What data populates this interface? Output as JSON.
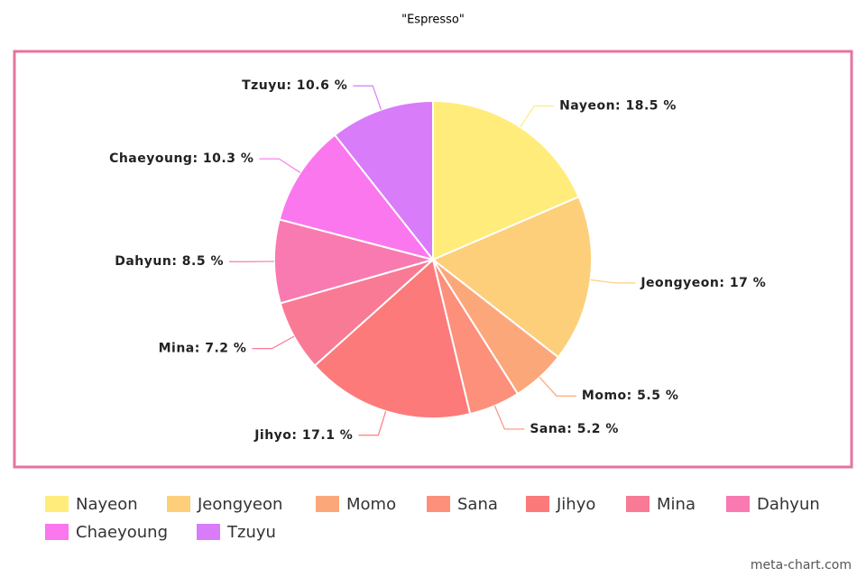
{
  "chart_data": {
    "type": "pie",
    "title": "\"Espresso\"",
    "categories": [
      "Nayeon",
      "Jeongyeon",
      "Momo",
      "Sana",
      "Jihyo",
      "Mina",
      "Dahyun",
      "Chaeyoung",
      "Tzuyu"
    ],
    "values": [
      18.5,
      17,
      5.5,
      5.2,
      17.1,
      7.2,
      8.5,
      10.3,
      10.6
    ],
    "value_labels": [
      "Nayeon: 18.5 %",
      "Jeongyeon: 17 %",
      "Momo: 5.5 %",
      "Sana: 5.2 %",
      "Jihyo: 17.1 %",
      "Mina: 7.2 %",
      "Dahyun: 8.5 %",
      "Chaeyoung: 10.3 %",
      "Tzuyu: 10.6 %"
    ],
    "colors": [
      "#ffec7a",
      "#fdcf7a",
      "#fca77a",
      "#fc907a",
      "#fc7a7a",
      "#f97a94",
      "#f97ab0",
      "#fb77ee",
      "#d97cf9"
    ],
    "credit": "meta-chart.com"
  }
}
